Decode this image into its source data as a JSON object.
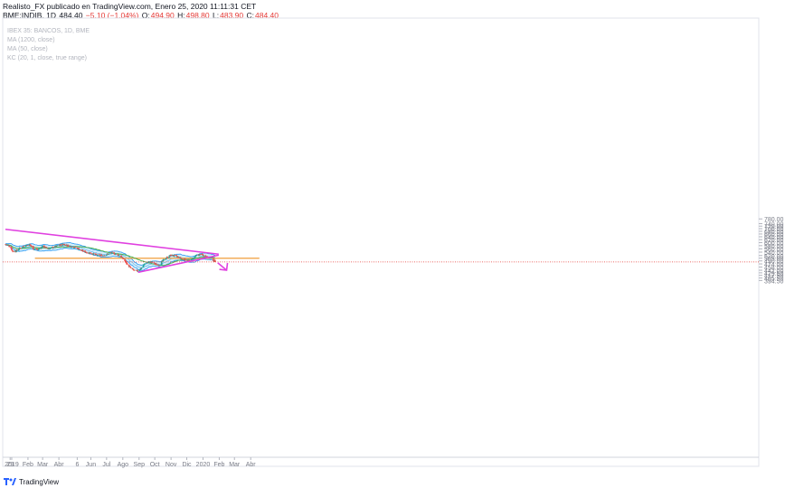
{
  "header": {
    "line1": "Realisto_FX publicado en TradingView.com, Enero 25, 2020 11:11:31 CET",
    "symbol": "BME:INDIB, 1D",
    "last": "484.40",
    "change": "−5.10 (−1.04%)",
    "o_label": "O:",
    "o_value": "494.90",
    "h_label": "H:",
    "h_value": "498.80",
    "l_label": "L:",
    "l_value": "483.90",
    "c_label": "C:",
    "c_value": "484.40"
  },
  "legend": [
    "IBEX 35: BANCOS, 1D, BME",
    "MA (1200, close)",
    "MA (50, close)",
    "KC (20, 1, close, true range)"
  ],
  "footer": {
    "brand": "TradingView"
  },
  "colors": {
    "up": "#26a69a",
    "down": "#ef5350",
    "ma": "#4caf50",
    "kc": "#2196f3",
    "kc_fill": "#b3e0f2",
    "trend": "#e040e0",
    "zone": "#ffcc80",
    "last_line": "#e53935"
  },
  "chart_data": {
    "type": "candlestick",
    "interval": "1D",
    "y_ticks": [
      394.5,
      405.5,
      417.5,
      429.5,
      442,
      458,
      474,
      490,
      505,
      520,
      540,
      560,
      580,
      600,
      620,
      640,
      660,
      680,
      700,
      720,
      740,
      780
    ],
    "x_labels": [
      "29",
      "2019",
      "Feb",
      "Mar",
      "Abr",
      "6",
      "Jun",
      "Jul",
      "Ago",
      "Sep",
      "Oct",
      "Nov",
      "Dic",
      "2020",
      "Feb",
      "Mar",
      "Abr"
    ],
    "last_price": 484.4,
    "close_path": [
      [
        "2018-12-20",
        588
      ],
      [
        "2018-12-28",
        578
      ],
      [
        "2019-01-03",
        545
      ],
      [
        "2019-01-10",
        548
      ],
      [
        "2019-01-17",
        565
      ],
      [
        "2019-01-28",
        582
      ],
      [
        "2019-02-04",
        588
      ],
      [
        "2019-02-12",
        560
      ],
      [
        "2019-02-20",
        555
      ],
      [
        "2019-03-01",
        575
      ],
      [
        "2019-03-12",
        562
      ],
      [
        "2019-03-22",
        570
      ],
      [
        "2019-04-01",
        582
      ],
      [
        "2019-04-10",
        590
      ],
      [
        "2019-04-17",
        582
      ],
      [
        "2019-04-26",
        575
      ],
      [
        "2019-05-06",
        565
      ],
      [
        "2019-05-15",
        548
      ],
      [
        "2019-05-23",
        540
      ],
      [
        "2019-06-03",
        532
      ],
      [
        "2019-06-14",
        520
      ],
      [
        "2019-06-25",
        522
      ],
      [
        "2019-07-03",
        528
      ],
      [
        "2019-07-10",
        535
      ],
      [
        "2019-07-18",
        530
      ],
      [
        "2019-07-26",
        520
      ],
      [
        "2019-08-02",
        500
      ],
      [
        "2019-08-09",
        475
      ],
      [
        "2019-08-16",
        452
      ],
      [
        "2019-08-23",
        440
      ],
      [
        "2019-08-30",
        438
      ],
      [
        "2019-09-06",
        455
      ],
      [
        "2019-09-13",
        478
      ],
      [
        "2019-09-20",
        485
      ],
      [
        "2019-09-27",
        482
      ],
      [
        "2019-10-04",
        470
      ],
      [
        "2019-10-10",
        470
      ],
      [
        "2019-10-18",
        495
      ],
      [
        "2019-10-25",
        510
      ],
      [
        "2019-11-01",
        522
      ],
      [
        "2019-11-08",
        518
      ],
      [
        "2019-11-15",
        510
      ],
      [
        "2019-11-22",
        500
      ],
      [
        "2019-11-29",
        497
      ],
      [
        "2019-12-06",
        488
      ],
      [
        "2019-12-13",
        505
      ],
      [
        "2019-12-20",
        520
      ],
      [
        "2019-12-27",
        528
      ],
      [
        "2020-01-03",
        518
      ],
      [
        "2020-01-10",
        512
      ],
      [
        "2020-01-17",
        505
      ],
      [
        "2020-01-24",
        484.4
      ]
    ],
    "drawings": {
      "upper_trendline": [
        [
          "2018-12-20",
          695
        ],
        [
          "2020-01-31",
          528
        ]
      ],
      "lower_trendline": [
        [
          "2019-08-30",
          432
        ],
        [
          "2020-01-31",
          522
        ]
      ],
      "support_zone": [
        [
          "2019-01-01",
          "2020-02-01"
        ],
        [
          503,
          507
        ]
      ],
      "forecast_arrow": [
        [
          "2020-01-29",
          480
        ],
        [
          "2020-02-15",
          442
        ]
      ]
    }
  }
}
